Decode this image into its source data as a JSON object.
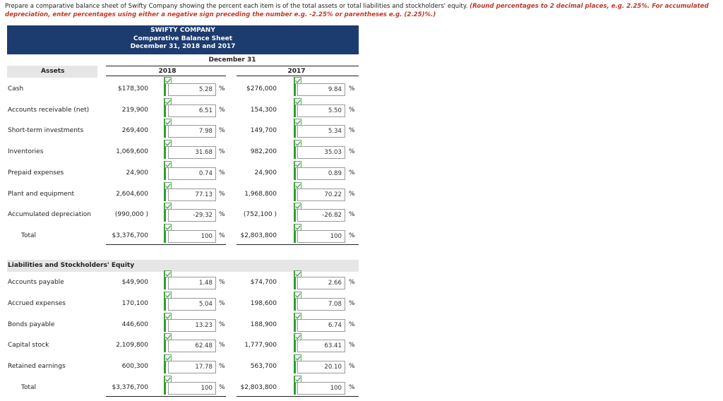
{
  "instructions": {
    "text": "Prepare a comparative balance sheet of Swifty Company showing the percent each item is of the total assets or total liabilities and stockholders' equity. ",
    "emphasis": "(Round percentages to 2 decimal places, e.g. 2.25%. For accumulated depreciation, enter percentages using either a negative sign preceding the number e.g. -2.25% or parentheses e.g. (2.25)%.)"
  },
  "header": {
    "company": "SWIFTY COMPANY",
    "statement": "Comparative Balance Sheet",
    "dates": "December 31, 2018 and 2017",
    "period": "December 31"
  },
  "columns": {
    "y2018": "2018",
    "y2017": "2017",
    "percent_sign": "%"
  },
  "assets": {
    "heading": "Assets",
    "rows": [
      {
        "label": "Cash",
        "a2018": "$178,300",
        "p2018": "5.28",
        "a2017": "$276,000",
        "p2017": "9.84"
      },
      {
        "label": "Accounts receivable (net)",
        "a2018": "219,900",
        "p2018": "6.51",
        "a2017": "154,300",
        "p2017": "5.50"
      },
      {
        "label": "Short-term investments",
        "a2018": "269,400",
        "p2018": "7.98",
        "a2017": "149,700",
        "p2017": "5.34"
      },
      {
        "label": "Inventories",
        "a2018": "1,069,600",
        "p2018": "31.68",
        "a2017": "982,200",
        "p2017": "35.03"
      },
      {
        "label": "Prepaid expenses",
        "a2018": "24,900",
        "p2018": "0.74",
        "a2017": "24,900",
        "p2017": "0.89"
      },
      {
        "label": "Plant and equipment",
        "a2018": "2,604,600",
        "p2018": "77.13",
        "a2017": "1,968,800",
        "p2017": "70.22"
      },
      {
        "label": "Accumulated depreciation",
        "a2018": "(990,000 )",
        "p2018": "-29.32",
        "a2017": "(752,100 )",
        "p2017": "-26.82"
      },
      {
        "label": "Total",
        "a2018": "$3,376,700",
        "p2018": "100",
        "a2017": "$2,803,800",
        "p2017": "100"
      }
    ]
  },
  "liabilities": {
    "heading": "Liabilities and Stockholders' Equity",
    "rows": [
      {
        "label": "Accounts payable",
        "a2018": "$49,900",
        "p2018": "1.48",
        "a2017": "$74,700",
        "p2017": "2.66"
      },
      {
        "label": "Accrued expenses",
        "a2018": "170,100",
        "p2018": "5.04",
        "a2017": "198,600",
        "p2017": "7.08"
      },
      {
        "label": "Bonds payable",
        "a2018": "446,600",
        "p2018": "13.23",
        "a2017": "188,900",
        "p2017": "6.74"
      },
      {
        "label": "Capital stock",
        "a2018": "2,109,800",
        "p2018": "62.48",
        "a2017": "1,777,900",
        "p2017": "63.41"
      },
      {
        "label": "Retained earnings",
        "a2018": "600,300",
        "p2018": "17.78",
        "a2017": "563,700",
        "p2017": "20.10"
      },
      {
        "label": "Total",
        "a2018": "$3,376,700",
        "p2018": "100",
        "a2017": "$2,803,800",
        "p2017": "100"
      }
    ]
  }
}
